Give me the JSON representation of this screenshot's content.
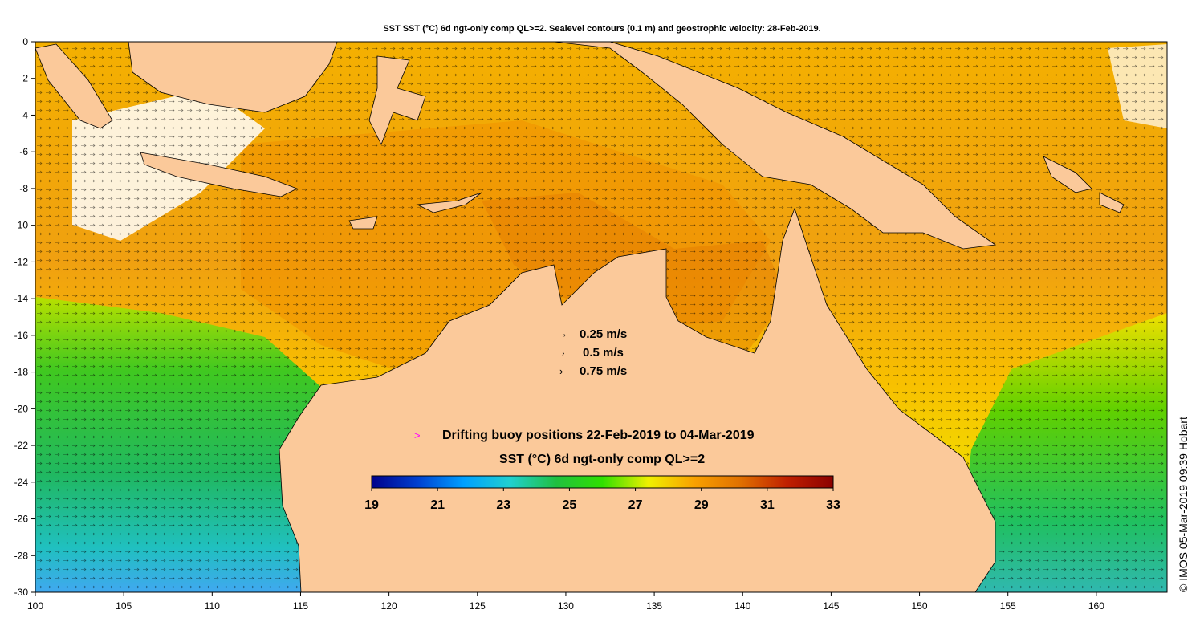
{
  "title": "SST SST (°C) 6d ngt-only comp QL>=2. Sealevel contours (0.1 m) and geostrophic velocity: 28-Feb-2019.",
  "axes": {
    "x_ticks": [
      "100",
      "105",
      "110",
      "115",
      "120",
      "125",
      "130",
      "135",
      "140",
      "145",
      "150",
      "155",
      "160"
    ],
    "y_ticks": [
      "0",
      "-2",
      "-4",
      "-6",
      "-8",
      "-10",
      "-12",
      "-14",
      "-16",
      "-18",
      "-20",
      "-22",
      "-24",
      "-26",
      "-28",
      "-30"
    ],
    "lon_range": [
      100,
      164
    ],
    "lat_range": [
      -30,
      0
    ]
  },
  "velocity_legend": [
    {
      "label": "0.25 m/s",
      "speed": 0.25
    },
    {
      "label": "0.5 m/s",
      "speed": 0.5
    },
    {
      "label": "0.75 m/s",
      "speed": 0.75
    }
  ],
  "buoy_legend": {
    "marker": ">",
    "label": "Drifting buoy positions 22-Feb-2019 to 04-Mar-2019",
    "color": "#ff00ff"
  },
  "colorbar": {
    "title": "SST (°C) 6d ngt-only comp QL>=2",
    "ticks": [
      "19",
      "21",
      "23",
      "25",
      "27",
      "29",
      "31",
      "33"
    ],
    "range": [
      19,
      33
    ],
    "colors": [
      "#00008b",
      "#0040d0",
      "#00a0ff",
      "#20d0d0",
      "#20c040",
      "#30e000",
      "#f0f000",
      "#f8a000",
      "#e07000",
      "#c02000",
      "#8b0000"
    ]
  },
  "land_color": "#fbc99a",
  "credit": "© IMOS 05-Mar-2019 09:39 Hobart"
}
